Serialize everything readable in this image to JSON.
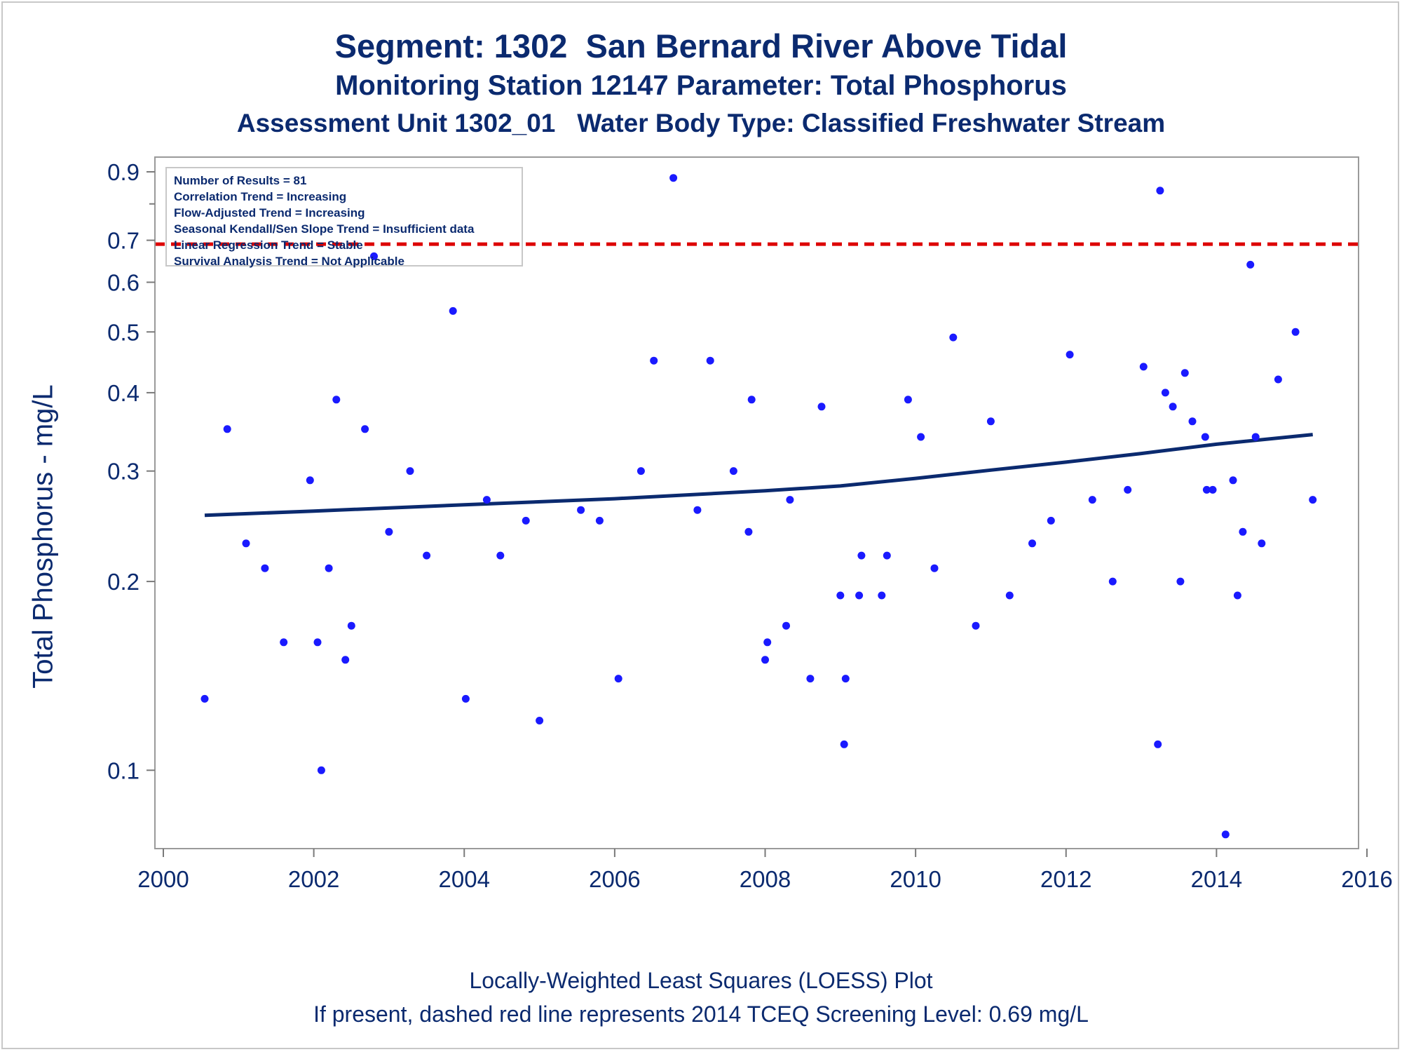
{
  "title": "Segment: 1302  San Bernard River Above Tidal",
  "subtitle": "Monitoring Station 12147 Parameter: Total Phosphorus",
  "subtitle2": "Assessment Unit 1302_01   Water Body Type: Classified Freshwater Stream",
  "footer": {
    "line1": "Locally-Weighted Least Squares (LOESS) Plot",
    "line2": "If present, dashed red line represents 2014 TCEQ Screening Level: 0.69 mg/L"
  },
  "stats": [
    "Number of Results = 81",
    "Correlation Trend = Increasing",
    "Flow-Adjusted Trend = Increasing",
    "Seasonal Kendall/Sen Slope Trend = Insufficient data",
    "Linear Regression Trend = Stable",
    "Survival Analysis Trend = Not Applicable"
  ],
  "colors": {
    "points": "#1a1aff",
    "loess": "#0b2a6f",
    "screening": "#dd0000",
    "text": "#0b2a6f"
  },
  "chart_data": {
    "type": "scatter",
    "xlabel": "",
    "ylabel": "Total Phosphorus - mg/L",
    "yscale": "log",
    "xlim": [
      2000,
      2016
    ],
    "ylim": [
      0.075,
      0.95
    ],
    "x_ticks": [
      2000,
      2002,
      2004,
      2006,
      2008,
      2010,
      2012,
      2014,
      2016
    ],
    "y_ticks": [
      0.1,
      0.2,
      0.3,
      0.4,
      0.5,
      0.6,
      0.7,
      0.9
    ],
    "screening_level": 0.69,
    "points": [
      [
        2000.55,
        0.13
      ],
      [
        2000.85,
        0.35
      ],
      [
        2001.1,
        0.23
      ],
      [
        2001.35,
        0.21
      ],
      [
        2001.6,
        0.16
      ],
      [
        2001.95,
        0.29
      ],
      [
        2002.05,
        0.16
      ],
      [
        2002.1,
        0.1
      ],
      [
        2002.2,
        0.21
      ],
      [
        2002.3,
        0.39
      ],
      [
        2002.42,
        0.15
      ],
      [
        2002.5,
        0.17
      ],
      [
        2002.68,
        0.35
      ],
      [
        2002.8,
        0.66
      ],
      [
        2003.0,
        0.24
      ],
      [
        2003.28,
        0.3
      ],
      [
        2003.5,
        0.22
      ],
      [
        2003.85,
        0.54
      ],
      [
        2004.02,
        0.13
      ],
      [
        2004.3,
        0.27
      ],
      [
        2004.48,
        0.22
      ],
      [
        2004.82,
        0.25
      ],
      [
        2005.0,
        0.12
      ],
      [
        2005.55,
        0.26
      ],
      [
        2005.8,
        0.25
      ],
      [
        2006.05,
        0.14
      ],
      [
        2006.35,
        0.3
      ],
      [
        2006.52,
        0.45
      ],
      [
        2006.78,
        0.88
      ],
      [
        2007.1,
        0.26
      ],
      [
        2007.27,
        0.45
      ],
      [
        2007.58,
        0.3
      ],
      [
        2007.78,
        0.24
      ],
      [
        2007.82,
        0.39
      ],
      [
        2008.0,
        0.15
      ],
      [
        2008.03,
        0.16
      ],
      [
        2008.28,
        0.17
      ],
      [
        2008.33,
        0.27
      ],
      [
        2008.6,
        0.14
      ],
      [
        2008.75,
        0.38
      ],
      [
        2009.0,
        0.19
      ],
      [
        2009.05,
        0.11
      ],
      [
        2009.07,
        0.14
      ],
      [
        2009.25,
        0.19
      ],
      [
        2009.28,
        0.22
      ],
      [
        2009.55,
        0.19
      ],
      [
        2009.62,
        0.22
      ],
      [
        2009.9,
        0.39
      ],
      [
        2010.07,
        0.34
      ],
      [
        2010.25,
        0.21
      ],
      [
        2010.5,
        0.49
      ],
      [
        2010.8,
        0.17
      ],
      [
        2011.0,
        0.36
      ],
      [
        2011.25,
        0.19
      ],
      [
        2011.55,
        0.23
      ],
      [
        2011.8,
        0.25
      ],
      [
        2012.05,
        0.46
      ],
      [
        2012.35,
        0.27
      ],
      [
        2012.62,
        0.2
      ],
      [
        2012.82,
        0.28
      ],
      [
        2013.03,
        0.44
      ],
      [
        2013.22,
        0.11
      ],
      [
        2013.25,
        0.84
      ],
      [
        2013.32,
        0.4
      ],
      [
        2013.42,
        0.38
      ],
      [
        2013.52,
        0.2
      ],
      [
        2013.58,
        0.43
      ],
      [
        2013.68,
        0.36
      ],
      [
        2013.85,
        0.34
      ],
      [
        2013.87,
        0.28
      ],
      [
        2013.95,
        0.28
      ],
      [
        2014.12,
        0.079
      ],
      [
        2014.22,
        0.29
      ],
      [
        2014.28,
        0.19
      ],
      [
        2014.35,
        0.24
      ],
      [
        2014.45,
        0.64
      ],
      [
        2014.52,
        0.34
      ],
      [
        2014.6,
        0.23
      ],
      [
        2014.82,
        0.42
      ],
      [
        2015.05,
        0.5
      ],
      [
        2015.28,
        0.27
      ]
    ],
    "loess": [
      [
        2000.55,
        0.255
      ],
      [
        2002.0,
        0.259
      ],
      [
        2004.0,
        0.265
      ],
      [
        2006.0,
        0.271
      ],
      [
        2008.0,
        0.279
      ],
      [
        2009.0,
        0.284
      ],
      [
        2010.0,
        0.292
      ],
      [
        2011.0,
        0.301
      ],
      [
        2012.0,
        0.31
      ],
      [
        2013.0,
        0.32
      ],
      [
        2014.0,
        0.331
      ],
      [
        2015.28,
        0.343
      ]
    ]
  }
}
